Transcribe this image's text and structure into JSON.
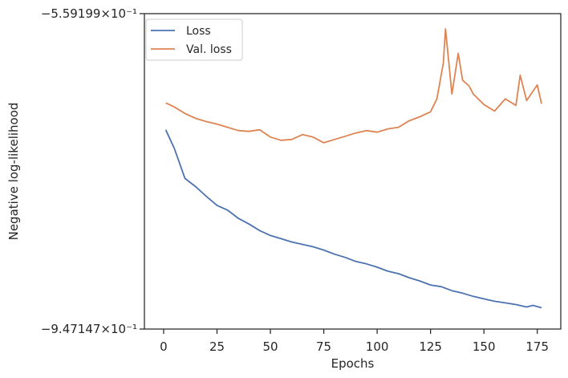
{
  "chart_data": {
    "type": "line",
    "title": "",
    "xlabel": "Epochs",
    "ylabel": "Negative log-likelihood",
    "xlim": [
      -9,
      186
    ],
    "ylim": [
      -0.947147,
      -0.559199
    ],
    "x_ticks": [
      0,
      25,
      50,
      75,
      100,
      125,
      150,
      175
    ],
    "y_tick_labels": [
      "−5.59199×10⁻¹",
      "−9.47147×10⁻¹"
    ],
    "y_tick_values": [
      -0.559199,
      -0.947147
    ],
    "grid": false,
    "legend_position": "top-left",
    "colors": {
      "loss": "#4c72b0",
      "val_loss": "#dd8452",
      "axes": "#262626"
    },
    "series": [
      {
        "name": "Loss",
        "x": [
          1,
          5,
          10,
          15,
          20,
          25,
          30,
          35,
          40,
          45,
          50,
          55,
          60,
          65,
          70,
          75,
          80,
          85,
          90,
          95,
          100,
          105,
          110,
          115,
          120,
          125,
          130,
          135,
          140,
          145,
          150,
          155,
          160,
          165,
          170,
          173,
          177
        ],
        "y": [
          -0.702,
          -0.725,
          -0.762,
          -0.772,
          -0.784,
          -0.795,
          -0.801,
          -0.811,
          -0.818,
          -0.826,
          -0.832,
          -0.836,
          -0.84,
          -0.843,
          -0.846,
          -0.85,
          -0.855,
          -0.859,
          -0.864,
          -0.867,
          -0.871,
          -0.876,
          -0.879,
          -0.884,
          -0.888,
          -0.893,
          -0.895,
          -0.9,
          -0.903,
          -0.907,
          -0.91,
          -0.913,
          -0.915,
          -0.917,
          -0.92,
          -0.918,
          -0.921
        ]
      },
      {
        "name": "Val. loss",
        "x": [
          1,
          5,
          10,
          15,
          20,
          25,
          30,
          35,
          40,
          45,
          50,
          55,
          60,
          65,
          70,
          75,
          80,
          85,
          90,
          95,
          100,
          105,
          110,
          115,
          120,
          125,
          128,
          131,
          132,
          135,
          138,
          140,
          143,
          145,
          150,
          155,
          160,
          165,
          167,
          170,
          175,
          177
        ],
        "y": [
          -0.669,
          -0.674,
          -0.682,
          -0.688,
          -0.692,
          -0.695,
          -0.699,
          -0.703,
          -0.704,
          -0.702,
          -0.711,
          -0.715,
          -0.714,
          -0.708,
          -0.711,
          -0.718,
          -0.714,
          -0.71,
          -0.706,
          -0.703,
          -0.705,
          -0.701,
          -0.699,
          -0.691,
          -0.686,
          -0.68,
          -0.664,
          -0.62,
          -0.578,
          -0.658,
          -0.608,
          -0.641,
          -0.648,
          -0.658,
          -0.671,
          -0.679,
          -0.664,
          -0.672,
          -0.635,
          -0.666,
          -0.647,
          -0.67
        ]
      }
    ]
  }
}
